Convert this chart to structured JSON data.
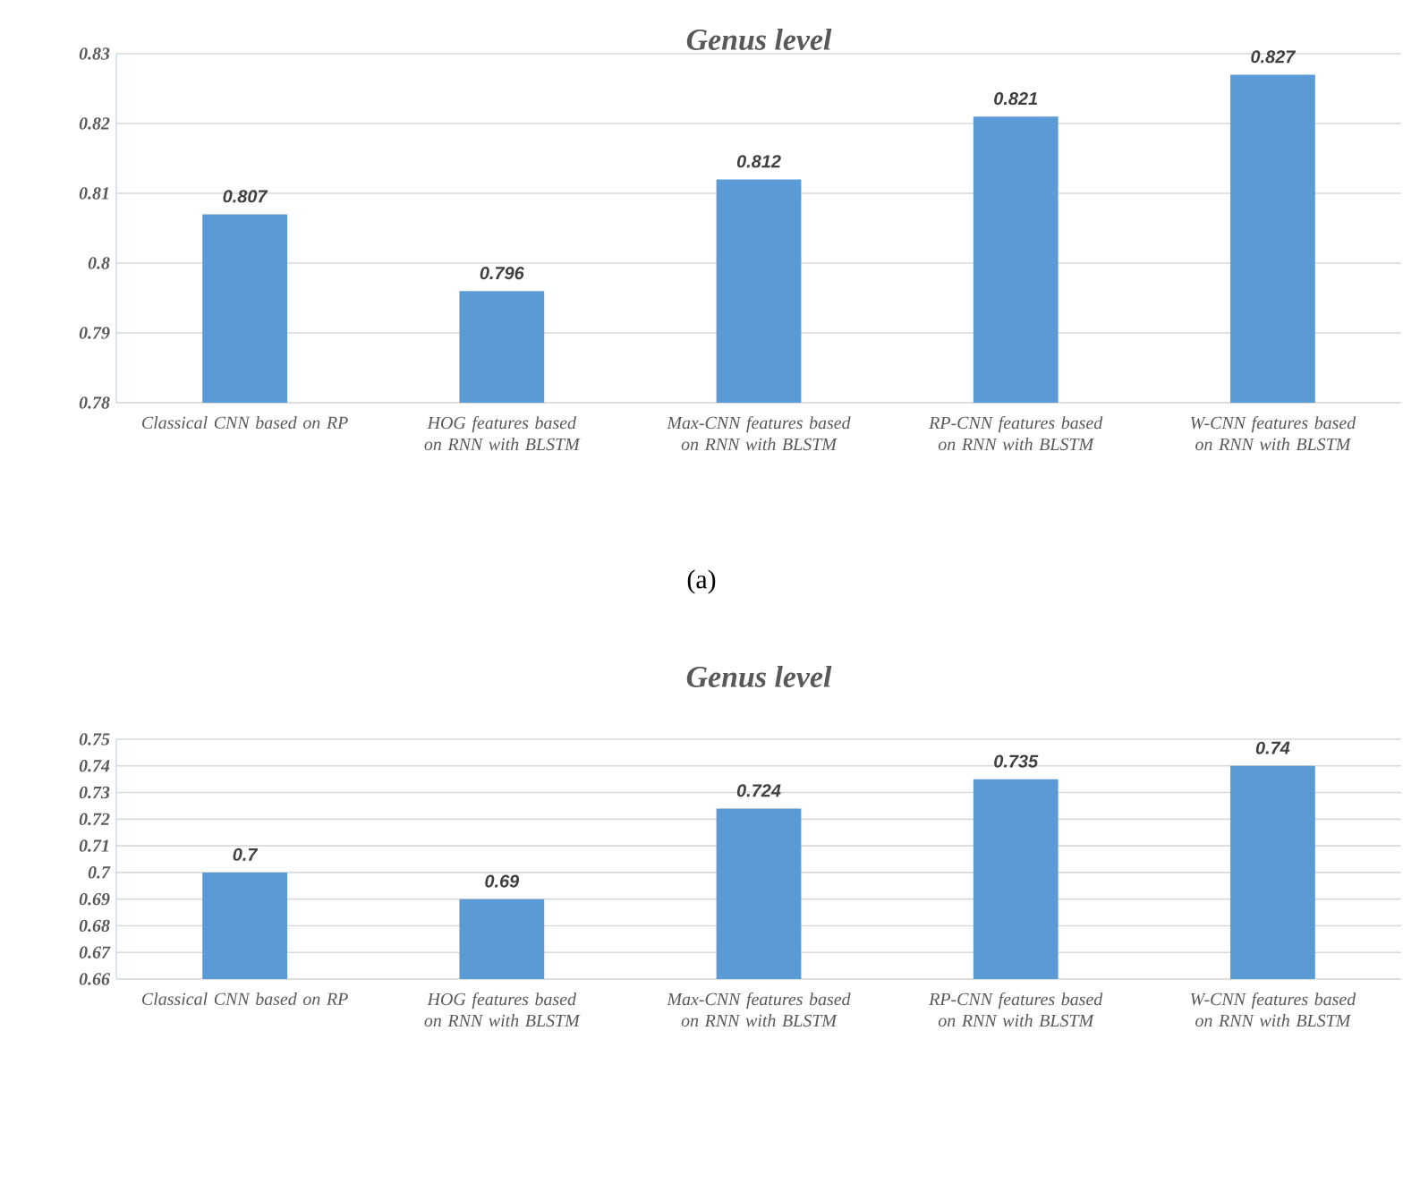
{
  "chart_data": [
    {
      "type": "bar",
      "title": "Genus level",
      "categories": [
        "Classical CNN based on RP",
        "HOG features based on RNN with BLSTM",
        "Max-CNN features based on RNN with BLSTM",
        "RP-CNN features based on RNN with BLSTM",
        "W-CNN features based on RNN with BLSTM"
      ],
      "values": [
        0.807,
        0.796,
        0.812,
        0.821,
        0.827
      ],
      "color": "#5b9bd5",
      "ylim": [
        0.78,
        0.83
      ],
      "yticks": [
        0.78,
        0.79,
        0.8,
        0.81,
        0.82,
        0.83
      ],
      "grid": "y",
      "data_labels": true,
      "annotations": [
        "(a)"
      ]
    },
    {
      "type": "bar",
      "title": "Genus level",
      "categories": [
        "Classical CNN based on RP",
        "HOG features based on RNN with BLSTM",
        "Max-CNN features based on RNN with BLSTM",
        "RP-CNN features based on RNN with BLSTM",
        "W-CNN features based on RNN with BLSTM"
      ],
      "values": [
        0.7,
        0.69,
        0.724,
        0.735,
        0.74
      ],
      "color": "#5b9bd5",
      "ylim": [
        0.66,
        0.75
      ],
      "yticks": [
        0.66,
        0.67,
        0.68,
        0.69,
        0.7,
        0.71,
        0.72,
        0.73,
        0.74,
        0.75
      ],
      "grid": "y",
      "data_labels": true
    }
  ]
}
